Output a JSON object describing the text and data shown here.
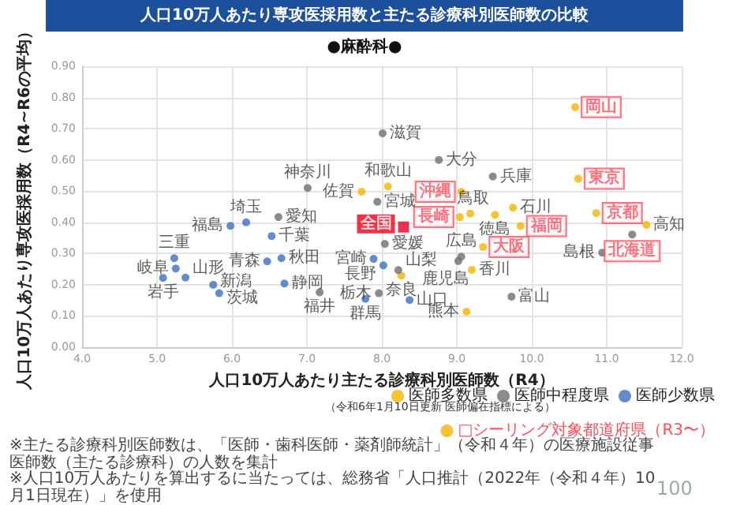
{
  "chart_data": {
    "type": "scatter",
    "title": "人口10万人あたり専攻医採用数と主たる診療科別医師数の比較",
    "subtitle": "●麻酔科●",
    "xlabel": "人口10万人あたり主たる診療科別医師数（R4）",
    "ylabel": "人口10万人あたり専攻医採用数（R4~R6の平均）",
    "xlim": [
      4,
      12
    ],
    "xticks": [
      {
        "value": 4,
        "label": "4.0"
      },
      {
        "value": 5,
        "label": "5.0"
      },
      {
        "value": 6,
        "label": "6.0"
      },
      {
        "value": 7,
        "label": "7.0"
      },
      {
        "value": 8,
        "label": "8.0"
      },
      {
        "value": 9,
        "label": "9.0"
      },
      {
        "value": 10,
        "label": "10.0"
      },
      {
        "value": 11,
        "label": "11.0"
      },
      {
        "value": 12,
        "label": "12.0"
      }
    ],
    "ylim": [
      0,
      0.9
    ],
    "yticks": [
      {
        "value": 0,
        "label": "0.00"
      },
      {
        "value": 0.1,
        "label": "0.10"
      },
      {
        "value": 0.2,
        "label": "0.20"
      },
      {
        "value": 0.3,
        "label": "0.30"
      },
      {
        "value": 0.4,
        "label": "0.40"
      },
      {
        "value": 0.5,
        "label": "0.50"
      },
      {
        "value": 0.6,
        "label": "0.60"
      },
      {
        "value": 0.7,
        "label": "0.70"
      },
      {
        "value": 0.8,
        "label": "0.80"
      },
      {
        "value": 0.9,
        "label": "0.90"
      }
    ],
    "grid": true,
    "legend": "bottom right",
    "marker": "circle",
    "series": [
      {
        "name": "医師多数県",
        "color": "#f5b400",
        "x": [
          7.73,
          8.08,
          9.51,
          9.18,
          9.75,
          11.53,
          8.26,
          9.2,
          9.13
        ],
        "values": [
          0.498,
          0.515,
          0.424,
          0.428,
          0.447,
          0.392,
          0.229,
          0.248,
          0.114
        ],
        "value_labels": [
          "佐賀",
          "和歌山",
          "徳島",
          "鳥取",
          "石川",
          "高知",
          "奈良",
          "香川",
          "熊本"
        ]
      },
      {
        "name": "医師中程度県",
        "color": "#6e6e6e",
        "x": [
          6.62,
          7.01,
          8.01,
          8.76,
          9.48,
          7.94,
          7.17,
          8.04,
          8.22,
          9.06,
          9.02,
          10.94,
          9.73,
          7.96
        ],
        "values": [
          0.417,
          0.51,
          0.685,
          0.6,
          0.547,
          0.466,
          0.176,
          0.331,
          0.247,
          0.29,
          0.276,
          0.303,
          0.162,
          0.173
        ],
        "value_labels": [
          "愛知",
          "神奈川",
          "滋賀",
          "大分",
          "兵庫",
          "宮城",
          "福井",
          "愛媛",
          "山梨",
          "広島",
          "鹿児島",
          "島根",
          "富山",
          "栃木"
        ]
      },
      {
        "name": "医師少数県",
        "color": "#3d6fc0",
        "x": [
          5.98,
          6.19,
          6.53,
          5.23,
          5.08,
          5.25,
          5.38,
          5.75,
          5.83,
          6.47,
          6.66,
          6.7,
          7.89,
          8.02,
          8.37,
          7.78
        ],
        "values": [
          0.389,
          0.4,
          0.356,
          0.285,
          0.222,
          0.252,
          0.223,
          0.2,
          0.173,
          0.275,
          0.285,
          0.204,
          0.283,
          0.262,
          0.151,
          0.155
        ],
        "value_labels": [
          "福島",
          "埼玉",
          "千葉",
          "三重",
          "岩手",
          "岐阜",
          "山形",
          "新潟",
          "茨城",
          "青森",
          "秋田",
          "静岡",
          "宮崎",
          "長野",
          "山口",
          "群馬"
        ]
      },
      {
        "name": "□シーリング対象都道府県（R3〜）",
        "color": "#f5b400",
        "colors": [
          "#f5b400",
          "#f5b400",
          "#f5b400",
          "#f5b400",
          "#f5b400",
          "#f5b400",
          "#6e6e6e",
          "#f5b400"
        ],
        "x": [
          10.58,
          10.62,
          9.06,
          9.04,
          9.85,
          10.86,
          11.34,
          9.35
        ],
        "values": [
          0.769,
          0.54,
          0.498,
          0.417,
          0.388,
          0.43,
          0.361,
          0.321
        ],
        "value_labels": [
          "岡山",
          "東京",
          "沖縄",
          "長崎",
          "福岡",
          "京都",
          "北海道",
          "大阪"
        ]
      },
      {
        "color": "#e8001c",
        "marker": "square",
        "x": [
          8.29
        ],
        "values": [
          0.385
        ],
        "value_labels": [
          "全国"
        ]
      }
    ],
    "annotations": [
      "（令和6年1月10日更新 医師偏在指標による）",
      "※主たる診療科別医師数は、「医師・歯科医師・薬剤師統計」（令和４年）の医療施設従事医師数（主たる診療科）の人数を集計",
      "※人口10万人あたりを算出するに当たっては、総務省「人口推計（2022年（令和４年）10月1日現在）」を使用",
      "100"
    ]
  }
}
